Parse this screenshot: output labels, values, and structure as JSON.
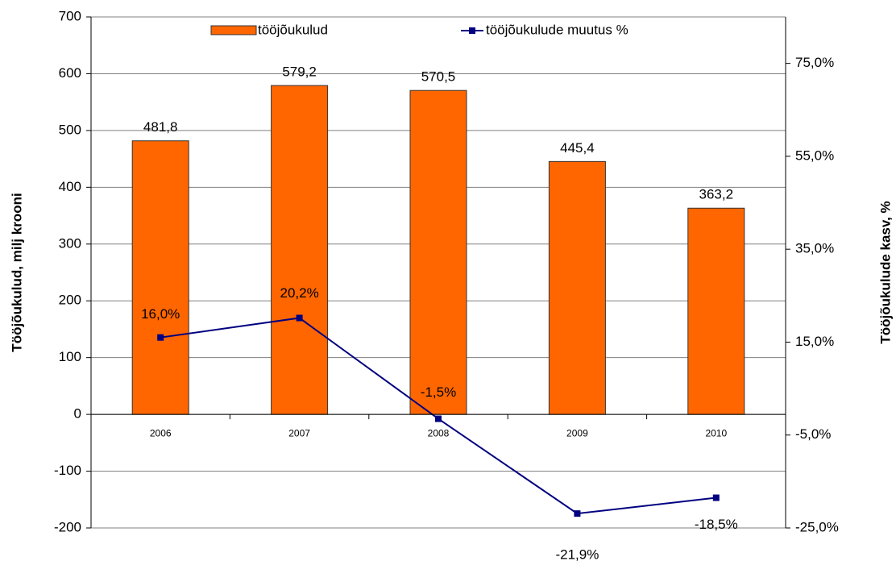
{
  "chart_data": {
    "type": "combo",
    "categories": [
      "2006",
      "2007",
      "2008",
      "2009",
      "2010"
    ],
    "series": [
      {
        "name": "tööjõukulud",
        "type": "bar",
        "color": "#ff6600",
        "values": [
          481.8,
          579.2,
          570.5,
          445.4,
          363.2
        ],
        "value_labels": [
          "481,8",
          "579,2",
          "570,5",
          "445,4",
          "363,2"
        ]
      },
      {
        "name": "tööjõukulude muutus %",
        "type": "line",
        "axis": "y2",
        "color": "#000080",
        "values": [
          16.0,
          20.2,
          -1.5,
          -21.9,
          -18.5
        ],
        "value_labels": [
          "16,0%",
          "20,2%",
          "-1,5%",
          "-21,9%",
          "-18,5%"
        ]
      }
    ],
    "ylabel": "Tööjõukulud, milj krooni",
    "y2label": "Tööjõukulude kasv, %",
    "ylim": [
      -200,
      700
    ],
    "yticks": [
      -200,
      -100,
      0,
      100,
      200,
      300,
      400,
      500,
      600,
      700
    ],
    "y2lim": [
      -25,
      85
    ],
    "y2ticks": [
      {
        "value": -25,
        "label": "-25,0%"
      },
      {
        "value": -5,
        "label": "-5,0%"
      },
      {
        "value": 15,
        "label": "15,0%"
      },
      {
        "value": 35,
        "label": "35,0%"
      },
      {
        "value": 55,
        "label": "55,0%"
      },
      {
        "value": 75,
        "label": "75,0%"
      }
    ],
    "grid": true
  }
}
